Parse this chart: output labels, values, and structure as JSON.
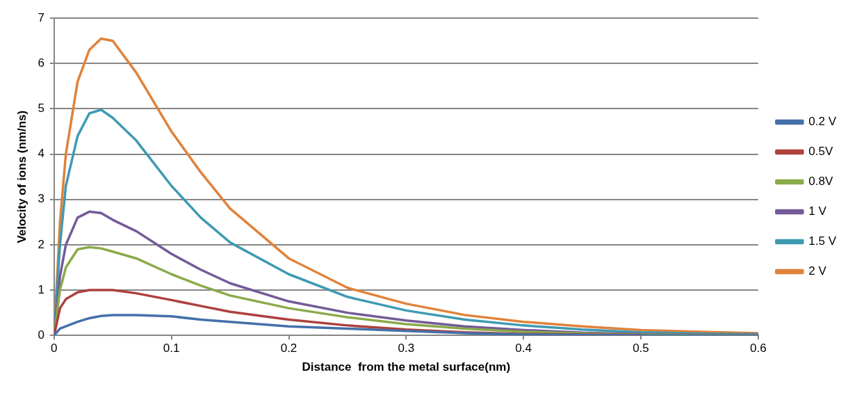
{
  "chart_data": {
    "type": "line",
    "xlabel": "Distance  from the metal surface(nm)",
    "ylabel": "Velocity of ions (nm/ns)",
    "x": [
      0,
      0.005,
      0.01,
      0.02,
      0.03,
      0.04,
      0.05,
      0.07,
      0.1,
      0.125,
      0.15,
      0.2,
      0.25,
      0.3,
      0.35,
      0.4,
      0.45,
      0.5,
      0.55,
      0.6
    ],
    "series": [
      {
        "name": "0.2 V",
        "color": "#4470aa",
        "values": [
          0,
          0.15,
          0.2,
          0.3,
          0.38,
          0.43,
          0.45,
          0.45,
          0.42,
          0.35,
          0.3,
          0.2,
          0.15,
          0.1,
          0.05,
          0.02,
          0.01,
          0,
          0,
          0
        ]
      },
      {
        "name": "0.5V",
        "color": "#ae403d",
        "values": [
          0,
          0.6,
          0.8,
          0.95,
          1.0,
          1.0,
          1.0,
          0.93,
          0.78,
          0.65,
          0.52,
          0.35,
          0.22,
          0.13,
          0.07,
          0.03,
          0.02,
          0.01,
          null,
          null
        ]
      },
      {
        "name": "0.8V",
        "color": "#8aaa4a",
        "values": [
          0,
          1,
          1.5,
          1.9,
          1.95,
          1.92,
          1.85,
          1.7,
          1.35,
          1.1,
          0.88,
          0.6,
          0.4,
          0.25,
          0.15,
          0.08,
          0.04,
          0.02,
          0.01,
          0.01
        ]
      },
      {
        "name": "1 V",
        "color": "#735a98",
        "values": [
          0,
          1.3,
          2.0,
          2.6,
          2.73,
          2.7,
          2.55,
          2.3,
          1.8,
          1.45,
          1.15,
          0.75,
          0.5,
          0.33,
          0.2,
          0.12,
          0.06,
          0.03,
          0.02,
          0.02
        ]
      },
      {
        "name": "1.5 V",
        "color": "#3e9ab2",
        "values": [
          0,
          2,
          3.3,
          4.4,
          4.9,
          4.98,
          4.8,
          4.3,
          3.3,
          2.6,
          2.05,
          1.35,
          0.85,
          0.55,
          0.35,
          0.22,
          0.13,
          0.07,
          0.04,
          0.03
        ]
      },
      {
        "name": "2 V",
        "color": "#e0823a",
        "values": [
          0,
          2.5,
          4,
          5.6,
          6.3,
          6.55,
          6.5,
          5.8,
          4.5,
          3.6,
          2.8,
          1.7,
          1.05,
          0.7,
          0.45,
          0.3,
          0.2,
          0.12,
          0.08,
          0.05
        ]
      }
    ],
    "xlim": [
      0,
      0.6
    ],
    "xticks": [
      0,
      0.1,
      0.2,
      0.3,
      0.4,
      0.5,
      0.6
    ],
    "ylim": [
      0,
      7
    ],
    "yticks": [
      0,
      1,
      2,
      3,
      4,
      5,
      6,
      7
    ],
    "grid": "y",
    "legend": "right",
    "marker": "none",
    "line_style": "solid"
  }
}
